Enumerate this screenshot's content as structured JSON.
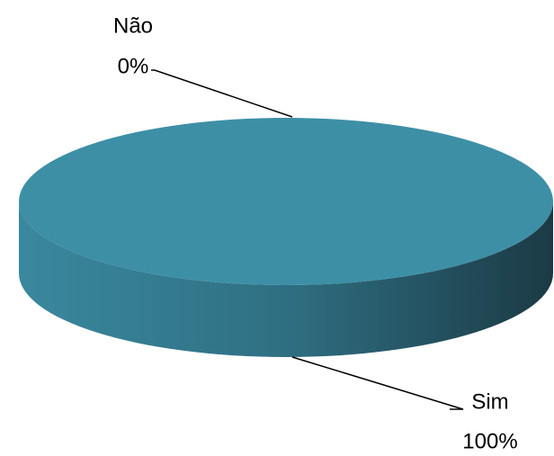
{
  "chart_data": {
    "type": "pie",
    "categories": [
      "Não",
      "Sim"
    ],
    "values": [
      0,
      100
    ],
    "value_labels": [
      "0%",
      "100%"
    ],
    "colors": [
      "#3d8fa6",
      "#3d8fa6"
    ]
  }
}
